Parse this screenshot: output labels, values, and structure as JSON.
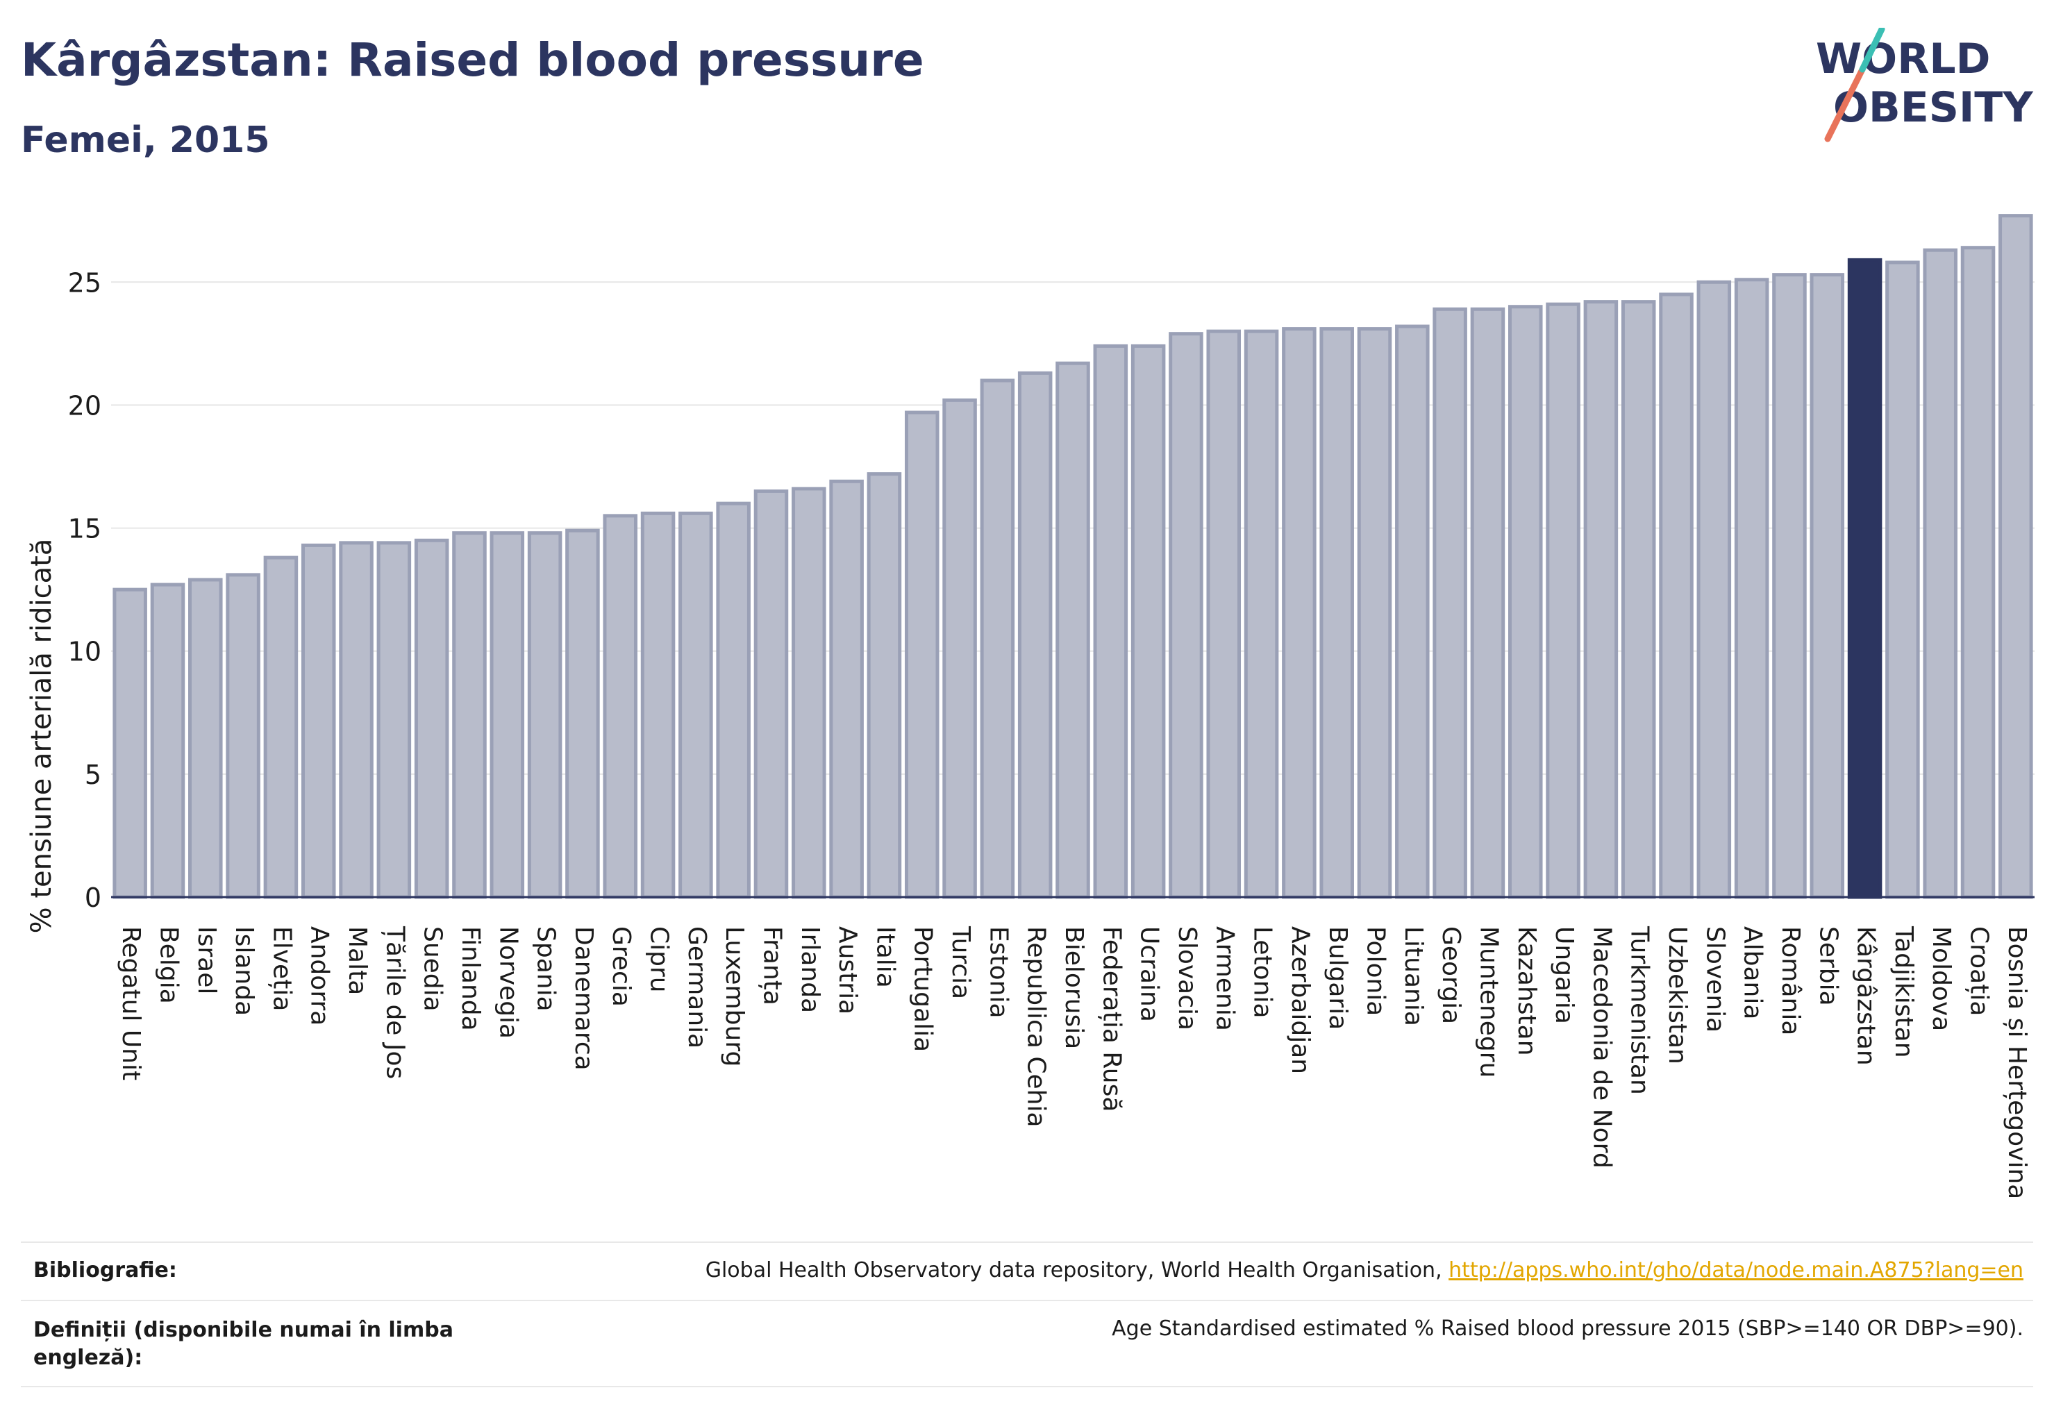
{
  "header": {
    "title": "Kârgâzstan: Raised blood pressure",
    "subtitle": "Femei, 2015"
  },
  "logo": {
    "line1": "WORLD",
    "line2": "OBESITY"
  },
  "chart_data": {
    "type": "bar",
    "title": "Kârgâzstan: Raised blood pressure",
    "subtitle": "Femei, 2015",
    "xlabel": "",
    "ylabel": "% tensiune arterială ridicată",
    "ylim": [
      0,
      28
    ],
    "yticks": [
      0,
      5,
      10,
      15,
      20,
      25
    ],
    "grid": true,
    "highlight": "Kârgâzstan",
    "colors": {
      "bar": "#b8bccb",
      "bar_edge": "#9aa0b6",
      "highlight": "#2c3560",
      "grid": "#e6e6e6",
      "axis": "#2c3560"
    },
    "categories": [
      "Regatul Unit",
      "Belgia",
      "Israel",
      "Islanda",
      "Elveția",
      "Andorra",
      "Malta",
      "Țările de Jos",
      "Suedia",
      "Finlanda",
      "Norvegia",
      "Spania",
      "Danemarca",
      "Grecia",
      "Cipru",
      "Germania",
      "Luxemburg",
      "Franța",
      "Irlanda",
      "Austria",
      "Italia",
      "Portugalia",
      "Turcia",
      "Estonia",
      "Republica Cehia",
      "Bielorusia",
      "Federația Rusă",
      "Ucraina",
      "Slovacia",
      "Armenia",
      "Letonia",
      "Azerbaidjan",
      "Bulgaria",
      "Polonia",
      "Lituania",
      "Georgia",
      "Muntenegru",
      "Kazahstan",
      "Ungaria",
      "Macedonia de Nord",
      "Turkmenistan",
      "Uzbekistan",
      "Slovenia",
      "Albania",
      "România",
      "Serbia",
      "Kârgâzstan",
      "Tadjikistan",
      "Moldova",
      "Croația",
      "Bosnia și Herțegovina"
    ],
    "values": [
      12.5,
      12.7,
      12.9,
      13.1,
      13.8,
      14.3,
      14.4,
      14.4,
      14.5,
      14.8,
      14.8,
      14.8,
      14.9,
      15.5,
      15.6,
      15.6,
      16.0,
      16.5,
      16.6,
      16.9,
      17.2,
      19.7,
      20.2,
      21.0,
      21.3,
      21.7,
      22.4,
      22.4,
      22.9,
      23.0,
      23.0,
      23.1,
      23.1,
      23.1,
      23.2,
      23.9,
      23.9,
      24.0,
      24.1,
      24.2,
      24.2,
      24.5,
      25.0,
      25.1,
      25.3,
      25.3,
      25.9,
      25.8,
      26.3,
      26.4,
      27.7
    ]
  },
  "footer": {
    "bib_label": "Bibliografie:",
    "bib_text": "Global Health Observatory data repository, World Health Organisation, ",
    "bib_link": "http://apps.who.int/gho/data/node.main.A875?lang=en",
    "def_label_1": "Definiții (disponibile numai în limba",
    "def_label_2": "engleză):",
    "def_text": "Age Standardised estimated % Raised blood pressure 2015 (SBP>=140 OR DBP>=90)."
  }
}
